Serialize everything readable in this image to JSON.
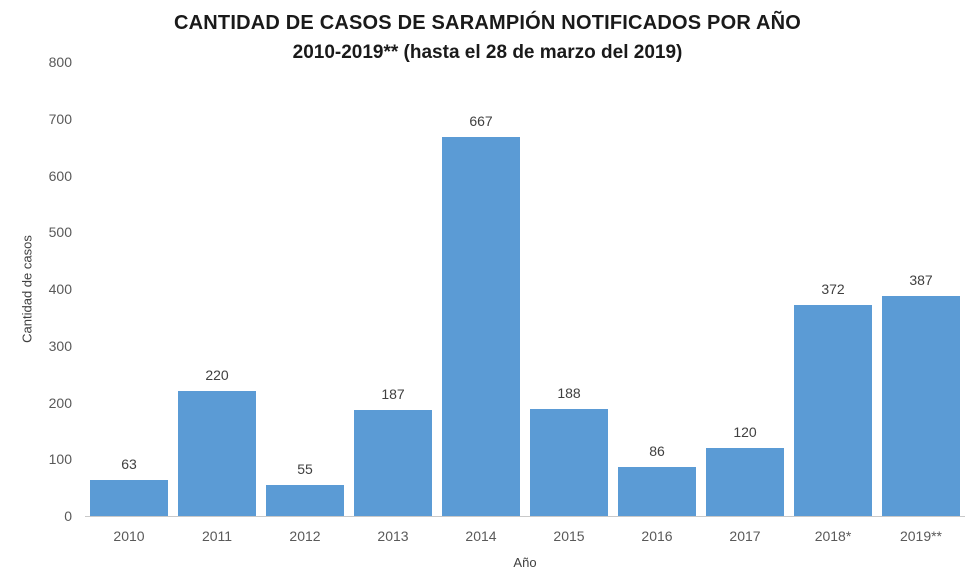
{
  "chart_data": {
    "type": "bar",
    "title": "CANTIDAD DE CASOS DE SARAMPIÓN NOTIFICADOS POR AÑO",
    "subtitle": "2010-2019** (hasta el 28 de marzo del 2019)",
    "categories": [
      "2010",
      "2011",
      "2012",
      "2013",
      "2014",
      "2015",
      "2016",
      "2017",
      "2018*",
      "2019**"
    ],
    "values": [
      63,
      220,
      55,
      187,
      667,
      188,
      86,
      120,
      372,
      387
    ],
    "xlabel": "Año",
    "ylabel": "Cantidad de casos",
    "ylim": [
      0,
      800
    ],
    "ytick_step": 100,
    "bar_color": "#5B9BD5",
    "value_label_color": "#404040",
    "tick_label_color": "#595959",
    "grid": false,
    "legend": false
  }
}
